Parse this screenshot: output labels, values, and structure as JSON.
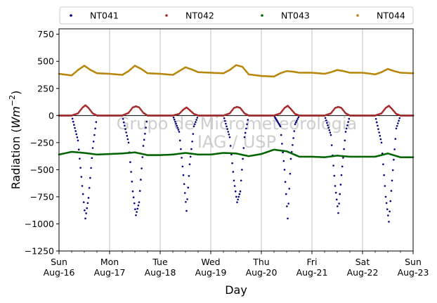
{
  "chart_data": {
    "type": "scatter",
    "xlabel": "Day",
    "ylabel": "Radiation (",
    "ylabel_units": "Wm",
    "ylabel_exponent": "−2",
    "ylabel_close": ")",
    "xlim": [
      "2020-08-16",
      "2020-08-23"
    ],
    "ylim": [
      -1250,
      800
    ],
    "yticks": [
      -1250,
      -1000,
      -750,
      -500,
      -250,
      0,
      250,
      500,
      750
    ],
    "ytick_labels": [
      "−1250",
      "−1000",
      "−750",
      "−500",
      "−250",
      "0",
      "250",
      "500",
      "750"
    ],
    "xticks": [
      {
        "date": "2020-08-16",
        "day": "Sun",
        "label": "Aug-16"
      },
      {
        "date": "2020-08-17",
        "day": "Mon",
        "label": "Aug-17"
      },
      {
        "date": "2020-08-18",
        "day": "Tue",
        "label": "Aug-18"
      },
      {
        "date": "2020-08-19",
        "day": "Wed",
        "label": "Aug-19"
      },
      {
        "date": "2020-08-20",
        "day": "Thu",
        "label": "Aug-20"
      },
      {
        "date": "2020-08-21",
        "day": "Fri",
        "label": "Aug-21"
      },
      {
        "date": "2020-08-22",
        "day": "Sat",
        "label": "Aug-22"
      },
      {
        "date": "2020-08-23",
        "day": "Sun",
        "label": "Aug-23"
      }
    ],
    "grid": "vertical",
    "zero_line": true,
    "legend_placement": "top",
    "watermark": [
      "Grupo de Micrometeorologia",
      "IAG / USP"
    ],
    "series": [
      {
        "name": "NT041",
        "color": "#000080",
        "x": [
          "08-16 00:00",
          "08-16 06:00",
          "08-16 09:00",
          "08-16 11:00",
          "08-16 12:30",
          "08-16 14:00",
          "08-16 16:00",
          "08-16 18:00",
          "08-17 00:00",
          "08-17 06:00",
          "08-17 09:00",
          "08-17 11:00",
          "08-17 12:30",
          "08-17 14:00",
          "08-17 16:00",
          "08-17 18:00",
          "08-18 00:00",
          "08-18 06:00",
          "08-18 09:00",
          "08-18 11:00",
          "08-18 12:30",
          "08-18 14:00",
          "08-18 16:00",
          "08-18 18:00",
          "08-19 00:00",
          "08-19 06:00",
          "08-19 09:00",
          "08-19 11:00",
          "08-19 12:30",
          "08-19 14:00",
          "08-19 16:00",
          "08-19 18:00",
          "08-20 00:00",
          "08-20 06:00",
          "08-20 09:00",
          "08-20 11:00",
          "08-20 12:30",
          "08-20 14:00",
          "08-20 16:00",
          "08-20 18:00",
          "08-21 00:00",
          "08-21 06:00",
          "08-21 09:00",
          "08-21 11:00",
          "08-21 12:30",
          "08-21 14:00",
          "08-21 16:00",
          "08-21 18:00",
          "08-22 00:00",
          "08-22 06:00",
          "08-22 09:00",
          "08-22 11:00",
          "08-22 12:30",
          "08-22 14:00",
          "08-22 16:00",
          "08-22 18:00",
          "08-23 00:00"
        ],
        "y": [
          0,
          0,
          -230,
          -650,
          -950,
          -760,
          -300,
          0,
          0,
          0,
          -250,
          -700,
          -920,
          -800,
          -280,
          0,
          0,
          0,
          -150,
          -550,
          -880,
          -450,
          -100,
          0,
          0,
          0,
          -200,
          -600,
          -800,
          -700,
          -200,
          0,
          0,
          0,
          -100,
          -500,
          -950,
          -400,
          -80,
          0,
          0,
          0,
          -180,
          -650,
          -900,
          -550,
          -150,
          0,
          0,
          0,
          -250,
          -750,
          -980,
          -600,
          -120,
          0,
          0
        ]
      },
      {
        "name": "NT042",
        "color": "#a52a2a",
        "x": [
          "08-16 00:00",
          "08-16 06:00",
          "08-16 09:00",
          "08-16 11:00",
          "08-16 12:30",
          "08-16 14:00",
          "08-16 16:00",
          "08-16 18:00",
          "08-17 00:00",
          "08-17 06:00",
          "08-17 09:00",
          "08-17 11:00",
          "08-17 12:30",
          "08-17 14:00",
          "08-17 16:00",
          "08-17 18:00",
          "08-18 00:00",
          "08-18 06:00",
          "08-18 09:00",
          "08-18 11:00",
          "08-18 12:30",
          "08-18 14:00",
          "08-18 16:00",
          "08-18 18:00",
          "08-19 00:00",
          "08-19 06:00",
          "08-19 09:00",
          "08-19 11:00",
          "08-19 12:30",
          "08-19 14:00",
          "08-19 16:00",
          "08-19 18:00",
          "08-20 00:00",
          "08-20 06:00",
          "08-20 09:00",
          "08-20 11:00",
          "08-20 12:30",
          "08-20 14:00",
          "08-20 16:00",
          "08-20 18:00",
          "08-21 00:00",
          "08-21 06:00",
          "08-21 09:00",
          "08-21 11:00",
          "08-21 12:30",
          "08-21 14:00",
          "08-21 16:00",
          "08-21 18:00",
          "08-22 00:00",
          "08-22 06:00",
          "08-22 09:00",
          "08-22 11:00",
          "08-22 12:30",
          "08-22 14:00",
          "08-22 16:00",
          "08-22 18:00",
          "08-23 00:00"
        ],
        "y": [
          0,
          0,
          20,
          70,
          95,
          70,
          20,
          0,
          0,
          0,
          25,
          75,
          85,
          75,
          25,
          0,
          0,
          0,
          15,
          55,
          75,
          50,
          15,
          0,
          0,
          0,
          20,
          70,
          80,
          70,
          20,
          0,
          0,
          0,
          20,
          70,
          90,
          60,
          15,
          0,
          0,
          0,
          20,
          70,
          80,
          70,
          20,
          0,
          0,
          0,
          20,
          70,
          90,
          60,
          15,
          0,
          0
        ]
      },
      {
        "name": "NT043",
        "color": "#006400",
        "x": [
          "08-16 00:00",
          "08-16 06:00",
          "08-16 12:00",
          "08-16 18:00",
          "08-17 00:00",
          "08-17 06:00",
          "08-17 12:00",
          "08-17 18:00",
          "08-18 00:00",
          "08-18 06:00",
          "08-18 12:00",
          "08-18 18:00",
          "08-19 00:00",
          "08-19 06:00",
          "08-19 12:00",
          "08-19 18:00",
          "08-20 00:00",
          "08-20 06:00",
          "08-20 12:00",
          "08-20 18:00",
          "08-21 00:00",
          "08-21 06:00",
          "08-21 12:00",
          "08-21 18:00",
          "08-22 00:00",
          "08-22 06:00",
          "08-22 12:00",
          "08-22 18:00",
          "08-23 00:00"
        ],
        "y": [
          -360,
          -335,
          -345,
          -360,
          -355,
          -350,
          -340,
          -365,
          -365,
          -360,
          -345,
          -360,
          -360,
          -345,
          -350,
          -375,
          -355,
          -315,
          -330,
          -380,
          -380,
          -385,
          -370,
          -380,
          -380,
          -380,
          -350,
          -385,
          -385
        ]
      },
      {
        "name": "NT044",
        "color": "#b8860b",
        "x": [
          "08-16 00:00",
          "08-16 06:00",
          "08-16 09:00",
          "08-16 12:00",
          "08-16 15:00",
          "08-16 18:00",
          "08-17 00:00",
          "08-17 06:00",
          "08-17 09:00",
          "08-17 12:00",
          "08-17 15:00",
          "08-17 18:00",
          "08-18 00:00",
          "08-18 06:00",
          "08-18 09:00",
          "08-18 12:00",
          "08-18 15:00",
          "08-18 18:00",
          "08-19 00:00",
          "08-19 06:00",
          "08-19 09:00",
          "08-19 12:00",
          "08-19 15:00",
          "08-19 18:00",
          "08-20 00:00",
          "08-20 06:00",
          "08-20 09:00",
          "08-20 12:00",
          "08-20 15:00",
          "08-20 18:00",
          "08-21 00:00",
          "08-21 06:00",
          "08-21 09:00",
          "08-21 12:00",
          "08-21 15:00",
          "08-21 18:00",
          "08-22 00:00",
          "08-22 06:00",
          "08-22 09:00",
          "08-22 12:00",
          "08-22 15:00",
          "08-22 18:00",
          "08-23 00:00"
        ],
        "y": [
          385,
          370,
          420,
          460,
          420,
          390,
          385,
          375,
          410,
          460,
          430,
          390,
          385,
          375,
          410,
          445,
          425,
          400,
          395,
          390,
          420,
          465,
          450,
          380,
          365,
          360,
          390,
          410,
          405,
          395,
          395,
          385,
          400,
          420,
          410,
          395,
          395,
          380,
          400,
          430,
          410,
          395,
          390
        ]
      }
    ]
  }
}
